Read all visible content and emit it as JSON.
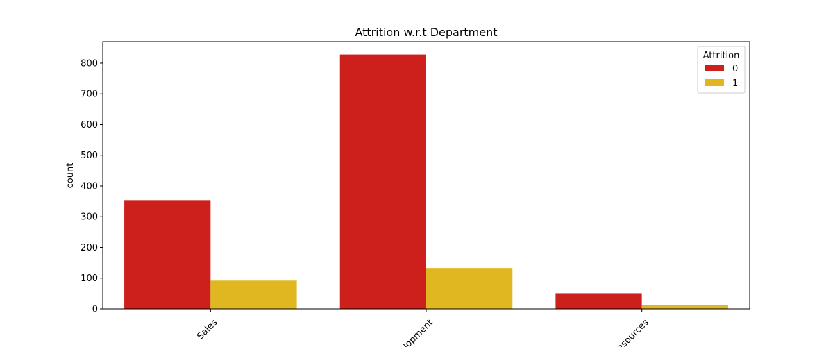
{
  "chart_data": {
    "type": "bar",
    "title": "Attrition w.r.t Department",
    "xlabel": "",
    "ylabel": "count",
    "categories": [
      "Sales",
      "Research & Development",
      "Human Resources"
    ],
    "visible_category_labels": [
      "Sales",
      "lopment",
      "esources"
    ],
    "series": [
      {
        "name": "0",
        "values": [
          354,
          828,
          51
        ],
        "color": "#cd1f1c"
      },
      {
        "name": "1",
        "values": [
          92,
          133,
          12
        ],
        "color": "#e0b720"
      }
    ],
    "ylim": [
      0,
      870
    ],
    "yticks": [
      0,
      100,
      200,
      300,
      400,
      500,
      600,
      700,
      800
    ],
    "legend": {
      "title": "Attrition",
      "placement": "top-right"
    },
    "grid": false
  }
}
